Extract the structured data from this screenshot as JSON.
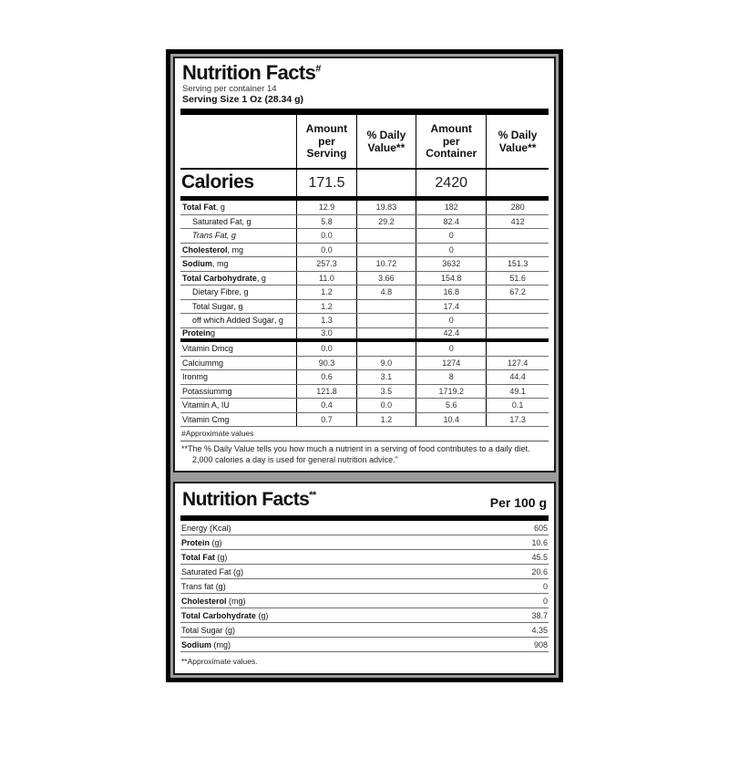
{
  "colors": {
    "frame": "#000000",
    "gap_gray": "#9c9c9c",
    "panel_bg": "#ffffff"
  },
  "panel1": {
    "title": "Nutrition Facts",
    "title_mark": "#",
    "serving_line1": "Serving per container 14",
    "serving_line2": "Serving Size 1 Oz (28.34 g)",
    "col_headers": {
      "c1": "Amount\nper\nServing",
      "c2": "% Daily\nValue**",
      "c3": "Amount\nper\nContainer",
      "c4": "% Daily\nValue**"
    },
    "calories": {
      "label": "Calories",
      "per_serving": "171.5",
      "per_container": "2420"
    },
    "rows": [
      {
        "label": "Total Fat",
        "unit": ", g",
        "style": "bold",
        "values": [
          "12.9",
          "19.83",
          "182",
          "280"
        ]
      },
      {
        "label": "Saturated Fat",
        "unit": ", g",
        "style": "indent",
        "values": [
          "5.8",
          "29.2",
          "82.4",
          "412"
        ]
      },
      {
        "label": "Trans Fat",
        "unit": ", g",
        "style": "indent italic",
        "values": [
          "0.0",
          "",
          "0",
          ""
        ]
      },
      {
        "label": "Cholesterol",
        "unit": ", mg",
        "style": "bold",
        "values": [
          "0.0",
          "",
          "0",
          ""
        ]
      },
      {
        "label": "Sodium",
        "unit": ", mg",
        "style": "bold",
        "values": [
          "257.3",
          "10.72",
          "3632",
          "151.3"
        ]
      },
      {
        "label": "Total Carbohydrate",
        "unit": ", g",
        "style": "bold",
        "values": [
          "11.0",
          "3.66",
          "154.8",
          "51.6"
        ]
      },
      {
        "label": "Dietary Fibre",
        "unit": ", g",
        "style": "indent",
        "values": [
          "1.2",
          "4.8",
          "16.8",
          "67.2"
        ]
      },
      {
        "label": "Total Sugar",
        "unit": ", g",
        "style": "indent",
        "values": [
          "1.2",
          "",
          "17.4",
          ""
        ]
      },
      {
        "label": "off which Added Sugar",
        "unit": ", g",
        "style": "indent",
        "values": [
          "1.3",
          "",
          "0",
          ""
        ]
      },
      {
        "label": "Protein",
        "unit": " g",
        "style": "bold thick-after",
        "values": [
          "3.0",
          "",
          "42.4",
          ""
        ]
      },
      {
        "label": "Vitamin D",
        "unit": " mcg",
        "style": "",
        "values": [
          "0.0",
          "",
          "0",
          ""
        ]
      },
      {
        "label": "Calcium",
        "unit": " mg",
        "style": "",
        "values": [
          "90.3",
          "9.0",
          "1274",
          "127.4"
        ]
      },
      {
        "label": "Iron",
        "unit": " mg",
        "style": "",
        "values": [
          "0.6",
          "3.1",
          "8",
          "44.4"
        ]
      },
      {
        "label": "Potassium",
        "unit": " mg",
        "style": "",
        "values": [
          "121.8",
          "3.5",
          "1719.2",
          "49.1"
        ]
      },
      {
        "label": "Vitamin A",
        "unit": ", IU",
        "style": "",
        "values": [
          "0.4",
          "0.0",
          "5.6",
          "0.1"
        ]
      },
      {
        "label": "Vitamin C",
        "unit": " mg",
        "style": "",
        "values": [
          "0.7",
          "1.2",
          "10.4",
          "17.3"
        ]
      }
    ],
    "footnote1": "#Approximate values",
    "footnote2": "**The % Daily Value tells you how much a nutrient in a serving of food contributes to a daily diet. 2,000 calories a day is used for general nutrition advice.\""
  },
  "panel2": {
    "title": "Nutrition Facts",
    "title_mark": "**",
    "per_label": "Per 100 g",
    "rows": [
      {
        "label": "Energy",
        "unit": " (Kcal)",
        "style": "",
        "value": "605"
      },
      {
        "label": "Protein",
        "unit": " (g)",
        "style": "bold",
        "value": "10.6"
      },
      {
        "label": "Total Fat",
        "unit": " (g)",
        "style": "bold",
        "value": "45.5"
      },
      {
        "label": "Saturated Fat",
        "unit": " (g)",
        "style": "indent",
        "value": "20.6"
      },
      {
        "label": "Trans fat",
        "unit": " (g)",
        "style": "indent italic",
        "value": "0"
      },
      {
        "label": "Cholesterol",
        "unit": " (mg)",
        "style": "bold",
        "value": "0"
      },
      {
        "label": "Total Carbohydrate",
        "unit": " (g)",
        "style": "bold",
        "value": "38.7"
      },
      {
        "label": "Total Sugar",
        "unit": " (g)",
        "style": "indent",
        "value": "4.35"
      },
      {
        "label": "Sodium",
        "unit": " (mg)",
        "style": "bold thick-after",
        "value": "908"
      }
    ],
    "footnote": "**Approximate values."
  }
}
